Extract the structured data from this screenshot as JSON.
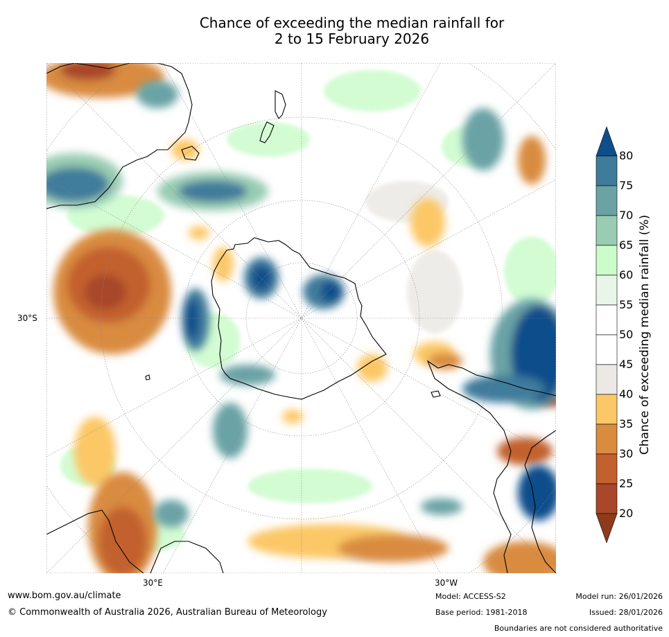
{
  "title_line1": "Chance of exceeding the median rainfall for",
  "title_line2": "2 to 15 February 2026",
  "map": {
    "projection": "south-polar stereographic",
    "lat_label": "30°S",
    "lon_labels": [
      "30°E",
      "30°W"
    ],
    "colors": {
      "ocean_bg": "#ffffff",
      "coast": "#000000",
      "grid": "#888888"
    }
  },
  "colorbar": {
    "label": "Chance of exceeding median rainfall (%)",
    "ticks": [
      "20",
      "25",
      "30",
      "35",
      "40",
      "45",
      "50",
      "55",
      "60",
      "65",
      "70",
      "75",
      "80"
    ],
    "bins": [
      {
        "range": "<20",
        "color": "#8f3a1b"
      },
      {
        "range": "20-25",
        "color": "#a8472a"
      },
      {
        "range": "25-30",
        "color": "#c2602e"
      },
      {
        "range": "30-35",
        "color": "#d98b3f"
      },
      {
        "range": "35-40",
        "color": "#fcc766"
      },
      {
        "range": "40-45",
        "color": "#ece9e4"
      },
      {
        "range": "45-50",
        "color": "#ffffff"
      },
      {
        "range": "50-55",
        "color": "#ffffff"
      },
      {
        "range": "55-60",
        "color": "#eaf5ea"
      },
      {
        "range": "60-65",
        "color": "#ccfccc"
      },
      {
        "range": "65-70",
        "color": "#99ccb3"
      },
      {
        "range": "70-75",
        "color": "#6ba3a5"
      },
      {
        "range": "75-80",
        "color": "#3f7b9b"
      },
      {
        "range": ">80",
        "color": "#104e8b"
      }
    ]
  },
  "footer": {
    "website": "www.bom.gov.au/climate",
    "copyright": "© Commonwealth of Australia 2026, Australian Bureau of Meteorology",
    "model": "Model: ACCESS-S2",
    "base_period": "Base period: 1981-2018",
    "model_run": "Model run: 26/01/2026",
    "issued": "Issued: 28/01/2026",
    "disclaimer": "Boundaries are not considered authoritative"
  }
}
